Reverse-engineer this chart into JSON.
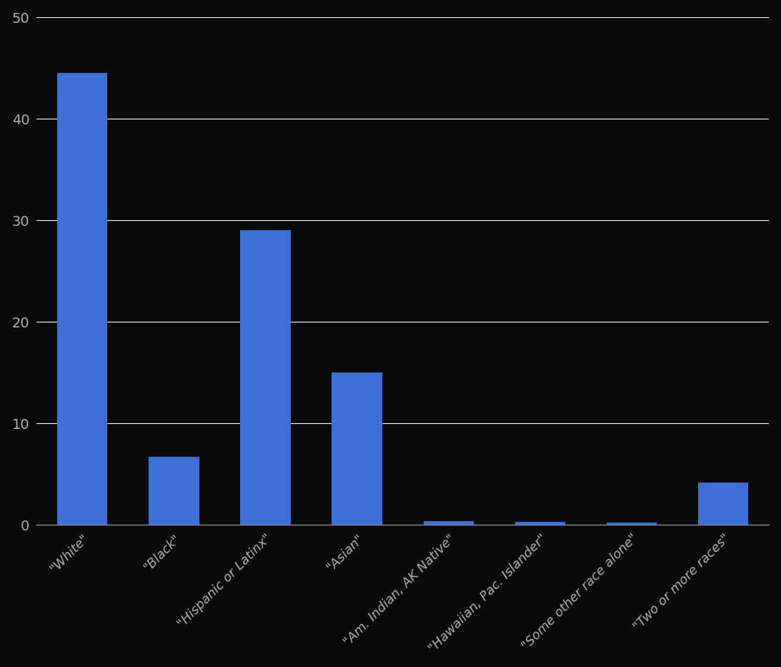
{
  "categories": [
    "\"White\"",
    "\"Black\"",
    "\"Hispanic or Latinx\"",
    "\"Asian\"",
    "\"Am. Indian, AK Native\"",
    "\"Hawaiian, Pac. Islander\"",
    "\"Some other race alone\"",
    "\"Two or more races\""
  ],
  "values": [
    44.5,
    6.7,
    29.0,
    15.0,
    0.4,
    0.3,
    0.25,
    4.2
  ],
  "bar_color": "#3d6fd4",
  "background_color": "#0a0a0a",
  "plot_bg_color": "#0a0a0a",
  "text_color": "#b0b0b0",
  "grid_color": "#ffffff",
  "axis_line_color": "#888888",
  "ylim": [
    0,
    50
  ],
  "yticks": [
    0,
    10,
    20,
    30,
    40,
    50
  ],
  "bar_width": 0.55,
  "tick_fontsize": 14,
  "label_fontsize": 13
}
